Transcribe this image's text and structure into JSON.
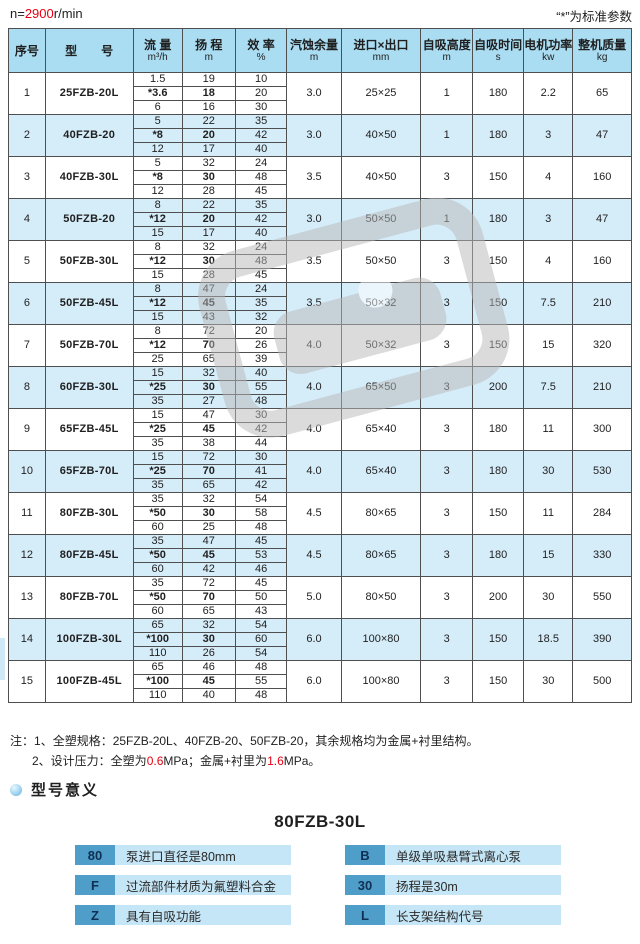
{
  "topbar": {
    "speed_prefix": "n=",
    "speed_value": "2900",
    "speed_suffix": "r/min",
    "standard_note": "“*”为标准参数"
  },
  "colors": {
    "accent_red": "#e60012",
    "header_blue": "#aadcf2",
    "row_blue": "#d5ecf9",
    "badge_blue": "#4e9ec9",
    "bar_blue": "#c5e6f6"
  },
  "table": {
    "headers": [
      {
        "title": "序号",
        "unit": ""
      },
      {
        "title": "型　　号",
        "unit": ""
      },
      {
        "title": "流 量",
        "unit": "m³/h"
      },
      {
        "title": "扬 程",
        "unit": "m"
      },
      {
        "title": "效 率",
        "unit": "%"
      },
      {
        "title": "汽蚀余量",
        "unit": "m"
      },
      {
        "title": "进口×出口",
        "unit": "mm"
      },
      {
        "title": "自吸高度",
        "unit": "m"
      },
      {
        "title": "自吸时间",
        "unit": "s"
      },
      {
        "title": "电机功率",
        "unit": "kw"
      },
      {
        "title": "整机质量",
        "unit": "kg"
      }
    ],
    "rows": [
      {
        "no": "1",
        "model": "25FZB-20L",
        "flow": [
          "1.5",
          "*3.6",
          "6"
        ],
        "head": [
          "19",
          "18",
          "16"
        ],
        "eff": [
          "10",
          "20",
          "30"
        ],
        "npsh": "3.0",
        "ports": "25×25",
        "suction_height": "1",
        "suction_time": "180",
        "power": "2.2",
        "weight": "65"
      },
      {
        "no": "2",
        "model": "40FZB-20",
        "flow": [
          "5",
          "*8",
          "12"
        ],
        "head": [
          "22",
          "20",
          "17"
        ],
        "eff": [
          "35",
          "42",
          "40"
        ],
        "npsh": "3.0",
        "ports": "40×50",
        "suction_height": "1",
        "suction_time": "180",
        "power": "3",
        "weight": "47"
      },
      {
        "no": "3",
        "model": "40FZB-30L",
        "flow": [
          "5",
          "*8",
          "12"
        ],
        "head": [
          "32",
          "30",
          "28"
        ],
        "eff": [
          "24",
          "48",
          "45"
        ],
        "npsh": "3.5",
        "ports": "40×50",
        "suction_height": "3",
        "suction_time": "150",
        "power": "4",
        "weight": "160"
      },
      {
        "no": "4",
        "model": "50FZB-20",
        "flow": [
          "8",
          "*12",
          "15"
        ],
        "head": [
          "22",
          "20",
          "17"
        ],
        "eff": [
          "35",
          "42",
          "40"
        ],
        "npsh": "3.0",
        "ports": "50×50",
        "suction_height": "1",
        "suction_time": "180",
        "power": "3",
        "weight": "47"
      },
      {
        "no": "5",
        "model": "50FZB-30L",
        "flow": [
          "8",
          "*12",
          "15"
        ],
        "head": [
          "32",
          "30",
          "28"
        ],
        "eff": [
          "24",
          "48",
          "45"
        ],
        "npsh": "3.5",
        "ports": "50×50",
        "suction_height": "3",
        "suction_time": "150",
        "power": "4",
        "weight": "160"
      },
      {
        "no": "6",
        "model": "50FZB-45L",
        "flow": [
          "8",
          "*12",
          "15"
        ],
        "head": [
          "47",
          "45",
          "43"
        ],
        "eff": [
          "24",
          "35",
          "32"
        ],
        "npsh": "3.5",
        "ports": "50×32",
        "suction_height": "3",
        "suction_time": "150",
        "power": "7.5",
        "weight": "210"
      },
      {
        "no": "7",
        "model": "50FZB-70L",
        "flow": [
          "8",
          "*12",
          "25"
        ],
        "head": [
          "72",
          "70",
          "65"
        ],
        "eff": [
          "20",
          "26",
          "39"
        ],
        "npsh": "4.0",
        "ports": "50×32",
        "suction_height": "3",
        "suction_time": "150",
        "power": "15",
        "weight": "320"
      },
      {
        "no": "8",
        "model": "60FZB-30L",
        "flow": [
          "15",
          "*25",
          "35"
        ],
        "head": [
          "32",
          "30",
          "27"
        ],
        "eff": [
          "40",
          "55",
          "48"
        ],
        "npsh": "4.0",
        "ports": "65×50",
        "suction_height": "3",
        "suction_time": "200",
        "power": "7.5",
        "weight": "210"
      },
      {
        "no": "9",
        "model": "65FZB-45L",
        "flow": [
          "15",
          "*25",
          "35"
        ],
        "head": [
          "47",
          "45",
          "38"
        ],
        "eff": [
          "30",
          "42",
          "44"
        ],
        "npsh": "4.0",
        "ports": "65×40",
        "suction_height": "3",
        "suction_time": "180",
        "power": "11",
        "weight": "300"
      },
      {
        "no": "10",
        "model": "65FZB-70L",
        "flow": [
          "15",
          "*25",
          "35"
        ],
        "head": [
          "72",
          "70",
          "65"
        ],
        "eff": [
          "30",
          "41",
          "42"
        ],
        "npsh": "4.0",
        "ports": "65×40",
        "suction_height": "3",
        "suction_time": "180",
        "power": "30",
        "weight": "530"
      },
      {
        "no": "11",
        "model": "80FZB-30L",
        "flow": [
          "35",
          "*50",
          "60"
        ],
        "head": [
          "32",
          "30",
          "25"
        ],
        "eff": [
          "54",
          "58",
          "48"
        ],
        "npsh": "4.5",
        "ports": "80×65",
        "suction_height": "3",
        "suction_time": "150",
        "power": "11",
        "weight": "284"
      },
      {
        "no": "12",
        "model": "80FZB-45L",
        "flow": [
          "35",
          "*50",
          "60"
        ],
        "head": [
          "47",
          "45",
          "42"
        ],
        "eff": [
          "45",
          "53",
          "46"
        ],
        "npsh": "4.5",
        "ports": "80×65",
        "suction_height": "3",
        "suction_time": "180",
        "power": "15",
        "weight": "330"
      },
      {
        "no": "13",
        "model": "80FZB-70L",
        "flow": [
          "35",
          "*50",
          "60"
        ],
        "head": [
          "72",
          "70",
          "65"
        ],
        "eff": [
          "45",
          "50",
          "43"
        ],
        "npsh": "5.0",
        "ports": "80×50",
        "suction_height": "3",
        "suction_time": "200",
        "power": "30",
        "weight": "550"
      },
      {
        "no": "14",
        "model": "100FZB-30L",
        "flow": [
          "65",
          "*100",
          "110"
        ],
        "head": [
          "32",
          "30",
          "26"
        ],
        "eff": [
          "54",
          "60",
          "54"
        ],
        "npsh": "6.0",
        "ports": "100×80",
        "suction_height": "3",
        "suction_time": "150",
        "power": "18.5",
        "weight": "390"
      },
      {
        "no": "15",
        "model": "100FZB-45L",
        "flow": [
          "65",
          "*100",
          "110"
        ],
        "head": [
          "46",
          "45",
          "40"
        ],
        "eff": [
          "48",
          "55",
          "48"
        ],
        "npsh": "6.0",
        "ports": "100×80",
        "suction_height": "3",
        "suction_time": "150",
        "power": "30",
        "weight": "500"
      }
    ]
  },
  "notes": {
    "label": "注：",
    "line1": "1、全塑规格：25FZB-20L、40FZB-20、50FZB-20，其余规格均为金属+衬里结构。",
    "line2_pre": "2、设计压力：全塑为",
    "line2_red1": "0.6",
    "line2_mid": "MPa；金属+衬里为",
    "line2_red2": "1.6",
    "line2_post": "MPa。"
  },
  "model_meaning": {
    "heading": "型号意义",
    "example": "80FZB-30L",
    "left_items": [
      {
        "code": "80",
        "desc": "泵进口直径是80mm"
      },
      {
        "code": "F",
        "desc": "过流部件材质为氟塑料合金"
      },
      {
        "code": "Z",
        "desc": "具有自吸功能"
      }
    ],
    "right_items": [
      {
        "code": "B",
        "desc": "单级单吸悬臂式离心泵"
      },
      {
        "code": "30",
        "desc": "扬程是30m"
      },
      {
        "code": "L",
        "desc": "长支架结构代号"
      }
    ]
  }
}
